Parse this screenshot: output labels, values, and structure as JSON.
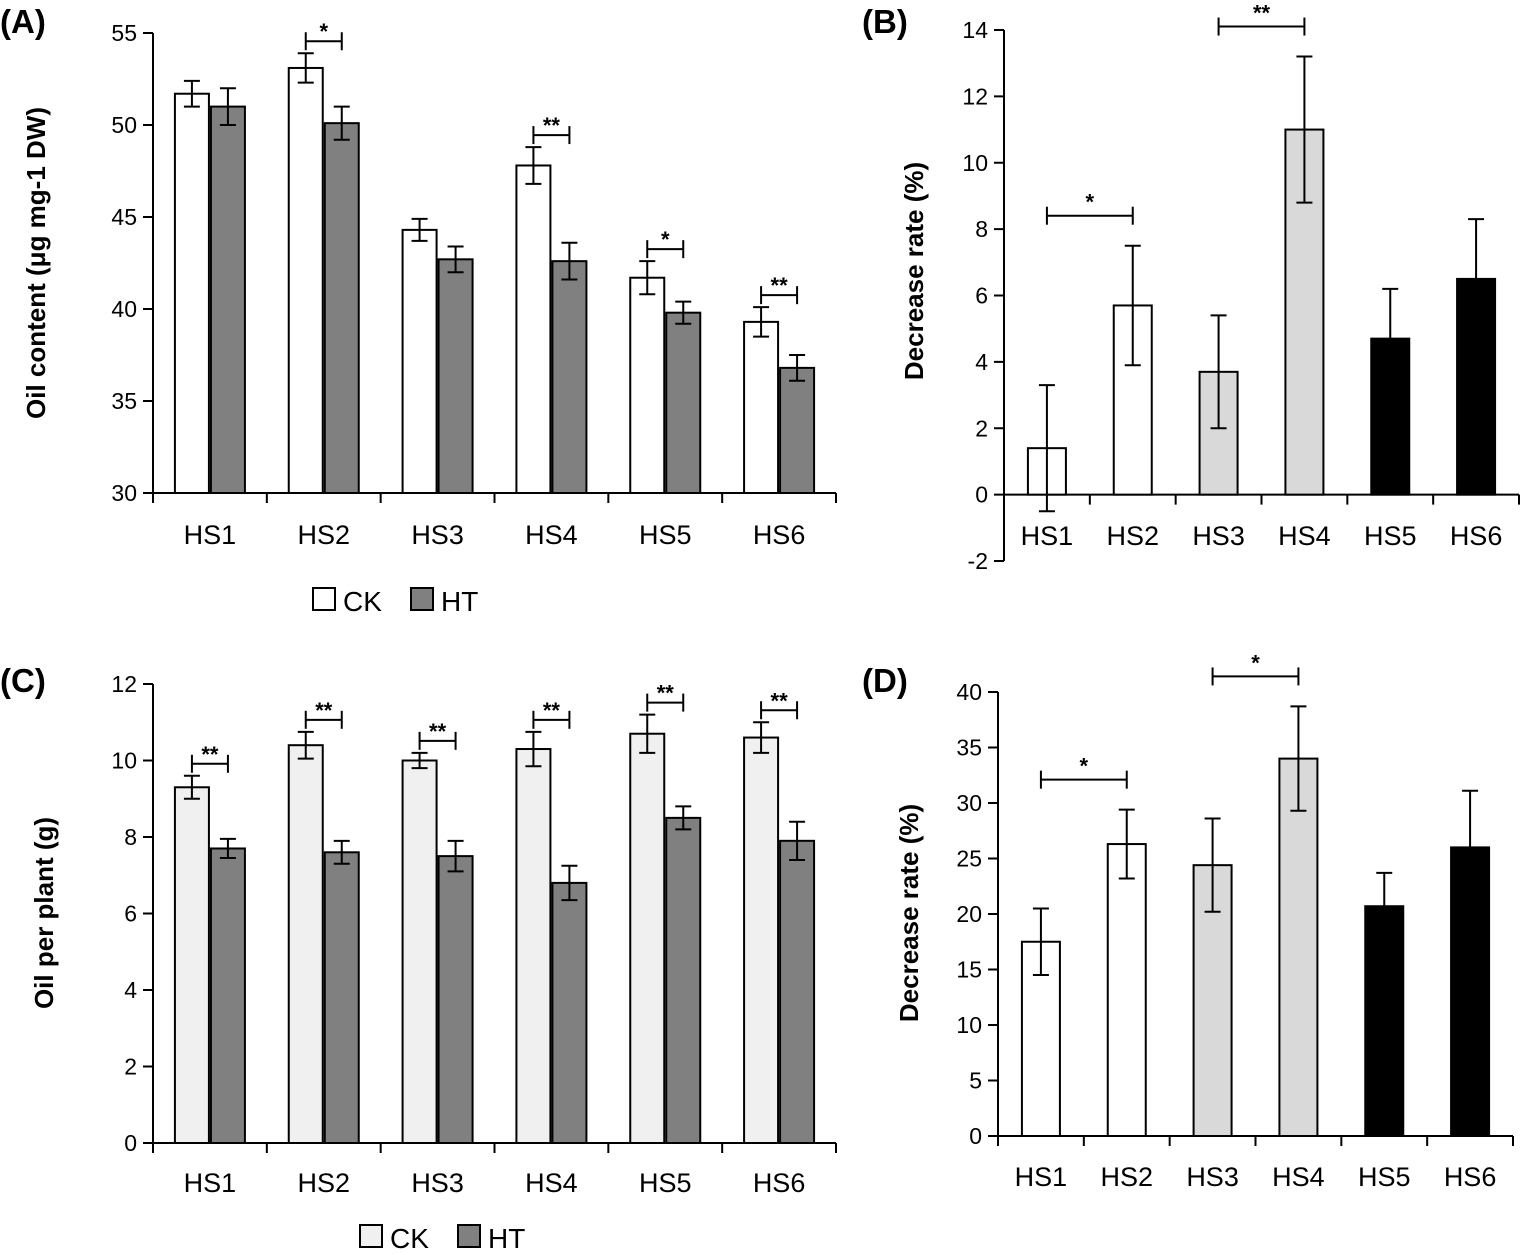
{
  "chart_data": [
    {
      "panel": "(A)",
      "type": "bar",
      "categories": [
        "HS1",
        "HS2",
        "HS3",
        "HS4",
        "HS5",
        "HS6"
      ],
      "ylabel": "Oil content  (μg mg-1 DW)",
      "ylim": [
        30,
        55
      ],
      "yticks": [
        30,
        35,
        40,
        45,
        50,
        55
      ],
      "series": [
        {
          "name": "CK",
          "color": "#ffffff",
          "values": [
            51.7,
            53.1,
            44.3,
            47.8,
            41.7,
            39.3
          ],
          "errors": [
            0.7,
            0.8,
            0.6,
            1.0,
            0.9,
            0.8
          ]
        },
        {
          "name": "HT",
          "color": "#808080",
          "values": [
            51.0,
            50.1,
            42.7,
            42.6,
            39.8,
            36.8
          ],
          "errors": [
            1.0,
            0.9,
            0.7,
            1.0,
            0.6,
            0.7
          ]
        }
      ],
      "significance": [
        {
          "category": "HS2",
          "label": "*"
        },
        {
          "category": "HS4",
          "label": "**"
        },
        {
          "category": "HS5",
          "label": "*"
        },
        {
          "category": "HS6",
          "label": "**"
        }
      ],
      "legend": [
        "CK",
        "HT"
      ]
    },
    {
      "panel": "(B)",
      "type": "bar",
      "categories": [
        "HS1",
        "HS2",
        "HS3",
        "HS4",
        "HS5",
        "HS6"
      ],
      "ylabel": "Decrease rate (%)",
      "ylim": [
        -2,
        14
      ],
      "yticks": [
        -2,
        0,
        2,
        4,
        6,
        8,
        10,
        12,
        14
      ],
      "values": [
        1.4,
        5.7,
        3.7,
        11.0,
        4.7,
        6.5
      ],
      "errors": [
        1.9,
        1.8,
        1.7,
        2.2,
        1.5,
        1.8
      ],
      "colors": [
        "#ffffff",
        "#ffffff",
        "#d9d9d9",
        "#d9d9d9",
        "#000000",
        "#000000"
      ],
      "significance": [
        {
          "from": "HS1",
          "to": "HS2",
          "label": "*"
        },
        {
          "from": "HS3",
          "to": "HS4",
          "label": "**"
        }
      ]
    },
    {
      "panel": "(C)",
      "type": "bar",
      "categories": [
        "HS1",
        "HS2",
        "HS3",
        "HS4",
        "HS5",
        "HS6"
      ],
      "ylabel": "Oil per plant (g)",
      "ylim": [
        0,
        12
      ],
      "yticks": [
        0,
        2,
        4,
        6,
        8,
        10,
        12
      ],
      "series": [
        {
          "name": "CK",
          "color": "#f0f0f0",
          "values": [
            9.3,
            10.4,
            10.0,
            10.3,
            10.7,
            10.6
          ],
          "errors": [
            0.3,
            0.35,
            0.2,
            0.45,
            0.5,
            0.4
          ]
        },
        {
          "name": "HT",
          "color": "#808080",
          "values": [
            7.7,
            7.6,
            7.5,
            6.8,
            8.5,
            7.9
          ],
          "errors": [
            0.25,
            0.3,
            0.4,
            0.45,
            0.3,
            0.5
          ]
        }
      ],
      "significance": [
        {
          "category": "HS1",
          "label": "**"
        },
        {
          "category": "HS2",
          "label": "**"
        },
        {
          "category": "HS3",
          "label": "**"
        },
        {
          "category": "HS4",
          "label": "**"
        },
        {
          "category": "HS5",
          "label": "**"
        },
        {
          "category": "HS6",
          "label": "**"
        }
      ],
      "legend": [
        "CK",
        "HT"
      ]
    },
    {
      "panel": "(D)",
      "type": "bar",
      "categories": [
        "HS1",
        "HS2",
        "HS3",
        "HS4",
        "HS5",
        "HS6"
      ],
      "ylabel": "Decrease rate (%)",
      "ylim": [
        0,
        40
      ],
      "yticks": [
        0,
        5,
        10,
        15,
        20,
        25,
        30,
        35,
        40
      ],
      "values": [
        17.5,
        26.3,
        24.4,
        34.0,
        20.7,
        26.0
      ],
      "errors": [
        3.0,
        3.1,
        4.2,
        4.7,
        3.0,
        5.1
      ],
      "colors": [
        "#ffffff",
        "#ffffff",
        "#d9d9d9",
        "#d9d9d9",
        "#000000",
        "#000000"
      ],
      "significance": [
        {
          "from": "HS1",
          "to": "HS2",
          "label": "*"
        },
        {
          "from": "HS3",
          "to": "HS4",
          "label": "*"
        }
      ]
    }
  ]
}
